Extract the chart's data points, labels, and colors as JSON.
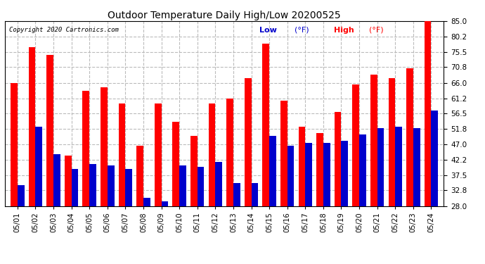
{
  "title": "Outdoor Temperature Daily High/Low 20200525",
  "copyright": "Copyright 2020 Cartronics.com",
  "legend_low": "Low",
  "legend_high": "High",
  "legend_unit": "(°F)",
  "ylim": [
    28.0,
    85.0
  ],
  "yticks": [
    28.0,
    32.8,
    37.5,
    42.2,
    47.0,
    51.8,
    56.5,
    61.2,
    66.0,
    70.8,
    75.5,
    80.2,
    85.0
  ],
  "dates": [
    "05/01",
    "05/02",
    "05/03",
    "05/04",
    "05/05",
    "05/06",
    "05/07",
    "05/08",
    "05/09",
    "05/10",
    "05/11",
    "05/12",
    "05/13",
    "05/14",
    "05/15",
    "05/16",
    "05/17",
    "05/18",
    "05/19",
    "05/20",
    "05/21",
    "05/22",
    "05/23",
    "05/24"
  ],
  "highs": [
    66.0,
    77.0,
    74.5,
    43.5,
    63.5,
    64.5,
    59.5,
    46.5,
    59.5,
    54.0,
    49.5,
    59.5,
    61.2,
    67.5,
    78.0,
    60.5,
    52.5,
    50.5,
    57.0,
    65.5,
    68.5,
    67.5,
    70.5,
    85.0
  ],
  "lows": [
    34.5,
    52.5,
    44.0,
    39.5,
    41.0,
    40.5,
    39.5,
    30.5,
    29.5,
    40.5,
    40.0,
    41.5,
    35.0,
    35.0,
    49.5,
    46.5,
    47.5,
    47.5,
    48.0,
    50.0,
    52.0,
    52.5,
    52.0,
    57.5
  ],
  "high_color": "#ff0000",
  "low_color": "#0000cc",
  "bg_color": "#ffffff",
  "grid_color": "#bbbbbb",
  "title_color": "#000000",
  "copyright_color": "#000000",
  "bar_width": 0.38
}
